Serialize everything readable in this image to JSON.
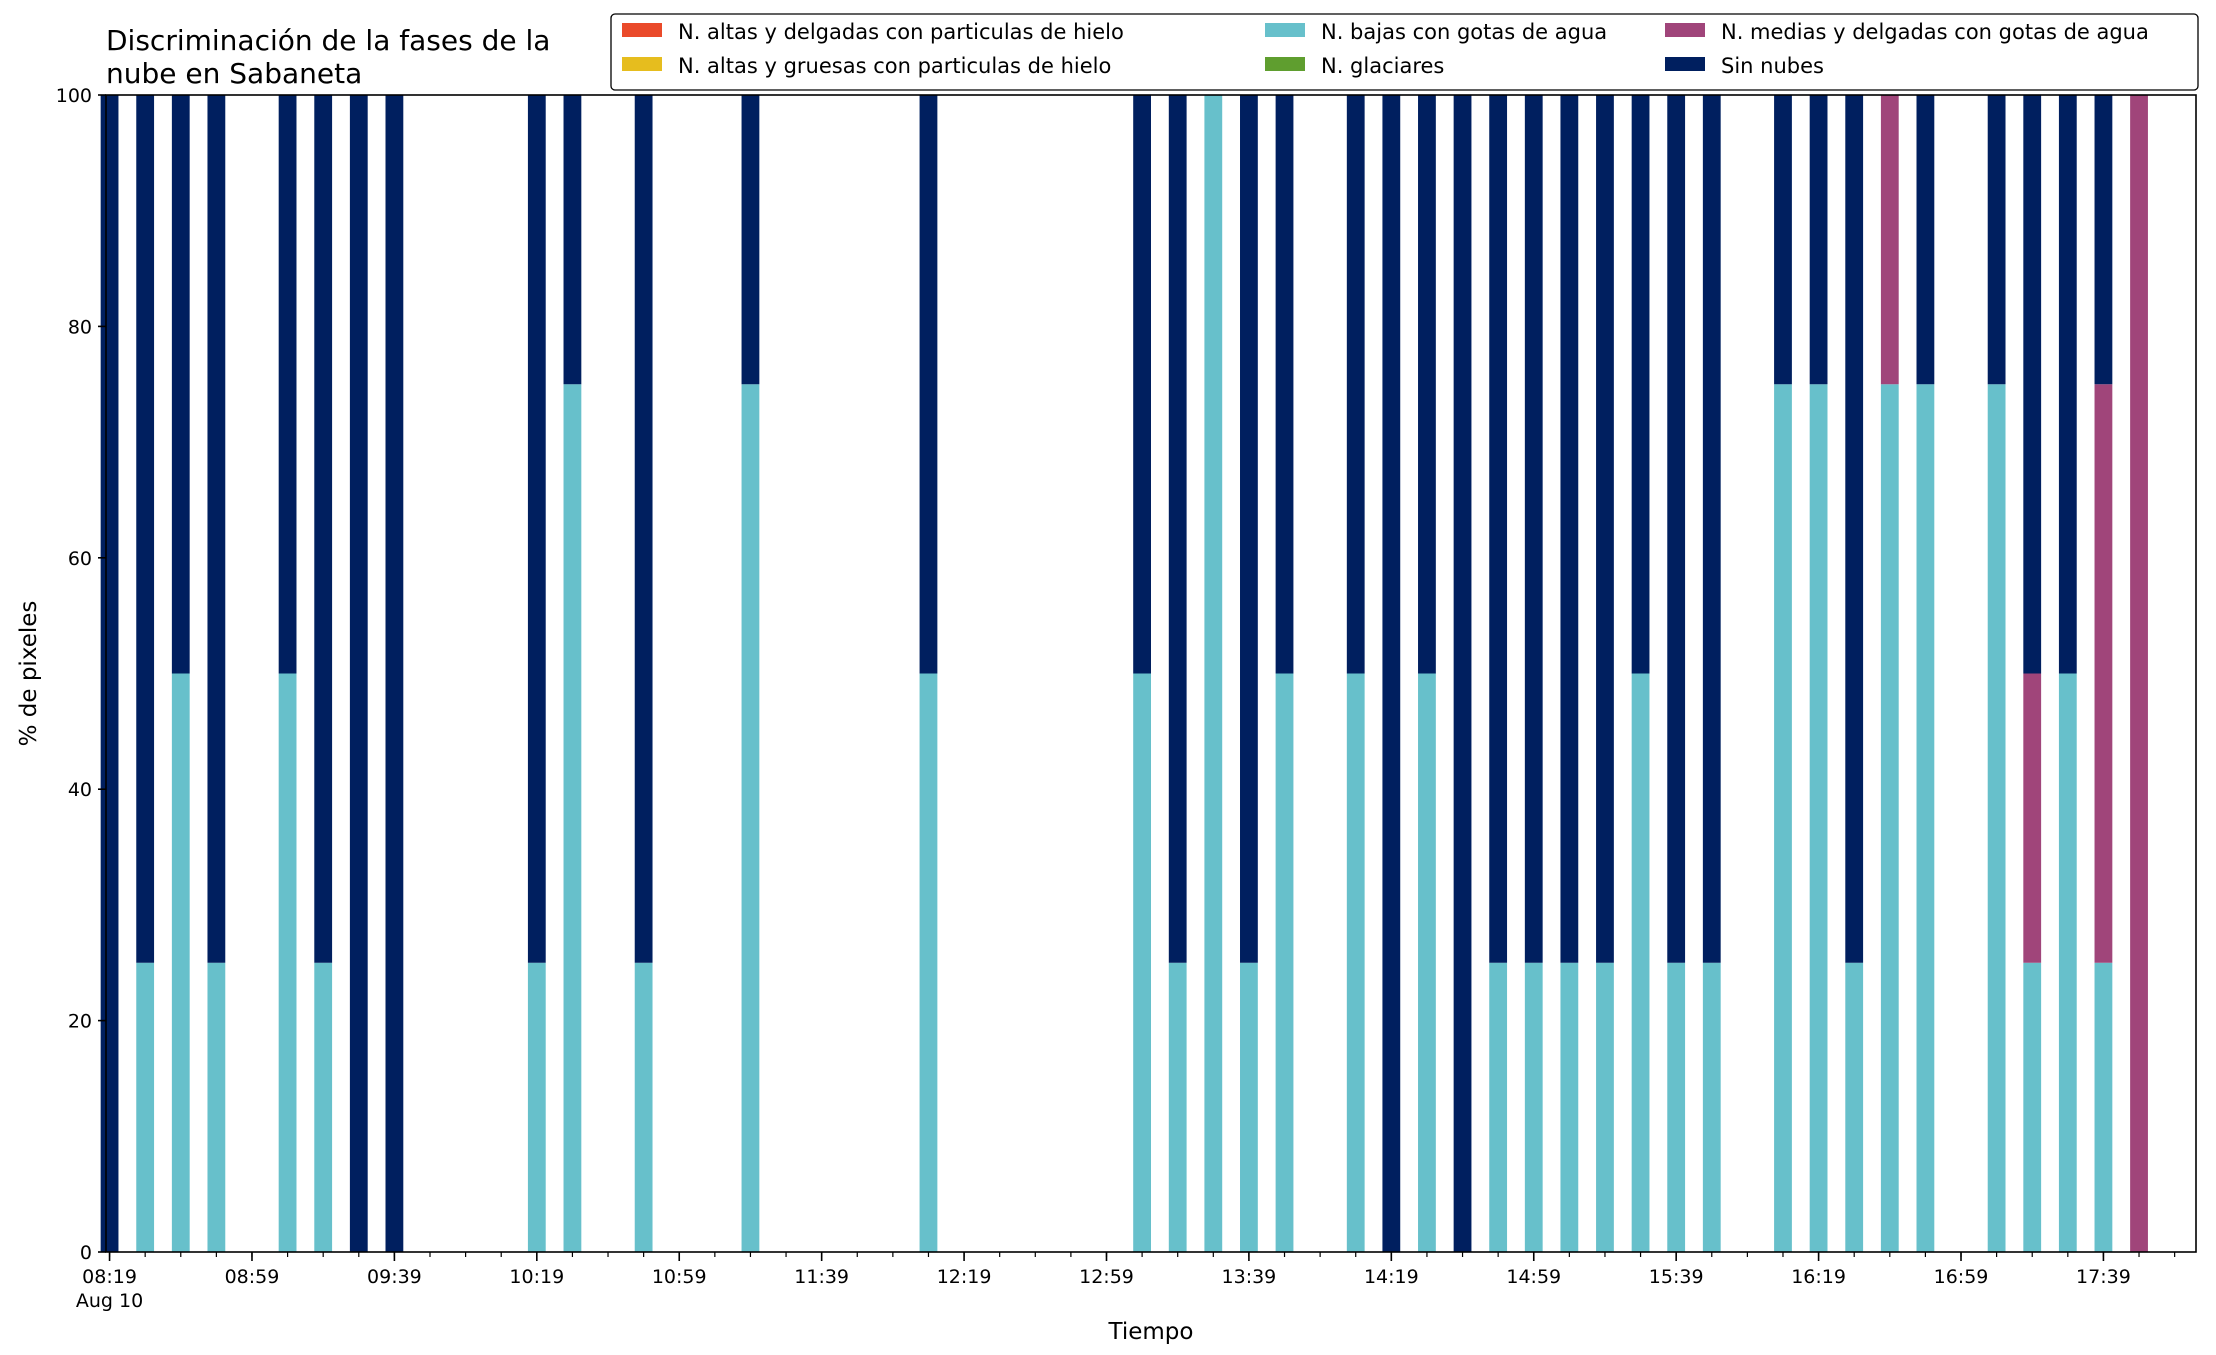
{
  "chart_data": {
    "type": "bar",
    "stacked": true,
    "title": "Discriminación de la fases de la\nnube en Sabaneta",
    "xlabel": "Tiempo",
    "ylabel": "% de pixeles",
    "ylim": [
      0,
      100
    ],
    "xlim": [
      -0.1,
      58.6
    ],
    "yticks": [
      0,
      20,
      40,
      60,
      80,
      100
    ],
    "grid": false,
    "legend_position": "top-right, above plot, 3 columns",
    "xtick_minor_count": 60,
    "xtick_labels": [
      {
        "pos": 0,
        "label": "08:19",
        "sublabel": "Aug 10"
      },
      {
        "pos": 4,
        "label": "08:59"
      },
      {
        "pos": 8,
        "label": "09:39"
      },
      {
        "pos": 12,
        "label": "10:19"
      },
      {
        "pos": 16,
        "label": "10:59"
      },
      {
        "pos": 20,
        "label": "11:39"
      },
      {
        "pos": 24,
        "label": "12:19"
      },
      {
        "pos": 28,
        "label": "12:59"
      },
      {
        "pos": 32,
        "label": "13:39"
      },
      {
        "pos": 36,
        "label": "14:19"
      },
      {
        "pos": 40,
        "label": "14:59"
      },
      {
        "pos": 44,
        "label": "15:39"
      },
      {
        "pos": 48,
        "label": "16:19"
      },
      {
        "pos": 52,
        "label": "16:59"
      },
      {
        "pos": 56,
        "label": "17:39"
      }
    ],
    "series": [
      {
        "name": "N. altas y delgadas con particulas de hielo",
        "color": "#ea4a2a"
      },
      {
        "name": "N. altas y gruesas con particulas de hielo",
        "color": "#e6bd1e"
      },
      {
        "name": "N. bajas con gotas de agua",
        "color": "#67c0cb"
      },
      {
        "name": "N. glaciares",
        "color": "#5f9e2f"
      },
      {
        "name": "N. medias y delgadas con gotas de agua",
        "color": "#a0457a"
      },
      {
        "name": "Sin nubes",
        "color": "#001f5f"
      }
    ],
    "stack_order": [
      "N. bajas con gotas de agua",
      "N. medias y delgadas con gotas de agua",
      "Sin nubes"
    ],
    "bars": [
      {
        "x": 0,
        "bajas": 0,
        "medias": 0,
        "sin": 100
      },
      {
        "x": 1,
        "bajas": 25,
        "medias": 0,
        "sin": 75
      },
      {
        "x": 2,
        "bajas": 50,
        "medias": 0,
        "sin": 50
      },
      {
        "x": 3,
        "bajas": 25,
        "medias": 0,
        "sin": 75
      },
      {
        "x": 5,
        "bajas": 50,
        "medias": 0,
        "sin": 50
      },
      {
        "x": 6,
        "bajas": 25,
        "medias": 0,
        "sin": 75
      },
      {
        "x": 7,
        "bajas": 0,
        "medias": 0,
        "sin": 100
      },
      {
        "x": 8,
        "bajas": 0,
        "medias": 0,
        "sin": 100
      },
      {
        "x": 12,
        "bajas": 25,
        "medias": 0,
        "sin": 75
      },
      {
        "x": 13,
        "bajas": 75,
        "medias": 0,
        "sin": 25
      },
      {
        "x": 15,
        "bajas": 25,
        "medias": 0,
        "sin": 75
      },
      {
        "x": 18,
        "bajas": 75,
        "medias": 0,
        "sin": 25
      },
      {
        "x": 23,
        "bajas": 50,
        "medias": 0,
        "sin": 50
      },
      {
        "x": 29,
        "bajas": 50,
        "medias": 0,
        "sin": 50
      },
      {
        "x": 30,
        "bajas": 25,
        "medias": 0,
        "sin": 75
      },
      {
        "x": 31,
        "bajas": 100,
        "medias": 0,
        "sin": 0
      },
      {
        "x": 32,
        "bajas": 25,
        "medias": 0,
        "sin": 75
      },
      {
        "x": 33,
        "bajas": 50,
        "medias": 0,
        "sin": 50
      },
      {
        "x": 35,
        "bajas": 50,
        "medias": 0,
        "sin": 50
      },
      {
        "x": 36,
        "bajas": 0,
        "medias": 0,
        "sin": 100
      },
      {
        "x": 37,
        "bajas": 50,
        "medias": 0,
        "sin": 50
      },
      {
        "x": 38,
        "bajas": 0,
        "medias": 0,
        "sin": 100
      },
      {
        "x": 39,
        "bajas": 25,
        "medias": 0,
        "sin": 75
      },
      {
        "x": 40,
        "bajas": 25,
        "medias": 0,
        "sin": 75
      },
      {
        "x": 41,
        "bajas": 25,
        "medias": 0,
        "sin": 75
      },
      {
        "x": 42,
        "bajas": 25,
        "medias": 0,
        "sin": 75
      },
      {
        "x": 43,
        "bajas": 50,
        "medias": 0,
        "sin": 50
      },
      {
        "x": 44,
        "bajas": 25,
        "medias": 0,
        "sin": 75
      },
      {
        "x": 45,
        "bajas": 25,
        "medias": 0,
        "sin": 75
      },
      {
        "x": 47,
        "bajas": 75,
        "medias": 0,
        "sin": 25
      },
      {
        "x": 48,
        "bajas": 75,
        "medias": 0,
        "sin": 25
      },
      {
        "x": 49,
        "bajas": 25,
        "medias": 0,
        "sin": 75
      },
      {
        "x": 50,
        "bajas": 75,
        "medias": 25,
        "sin": 0
      },
      {
        "x": 51,
        "bajas": 75,
        "medias": 0,
        "sin": 25
      },
      {
        "x": 53,
        "bajas": 75,
        "medias": 0,
        "sin": 25
      },
      {
        "x": 54,
        "bajas": 25,
        "medias": 25,
        "sin": 50
      },
      {
        "x": 55,
        "bajas": 50,
        "medias": 0,
        "sin": 50
      },
      {
        "x": 56,
        "bajas": 25,
        "medias": 50,
        "sin": 25
      },
      {
        "x": 57,
        "bajas": 0,
        "medias": 100,
        "sin": 0
      }
    ]
  }
}
